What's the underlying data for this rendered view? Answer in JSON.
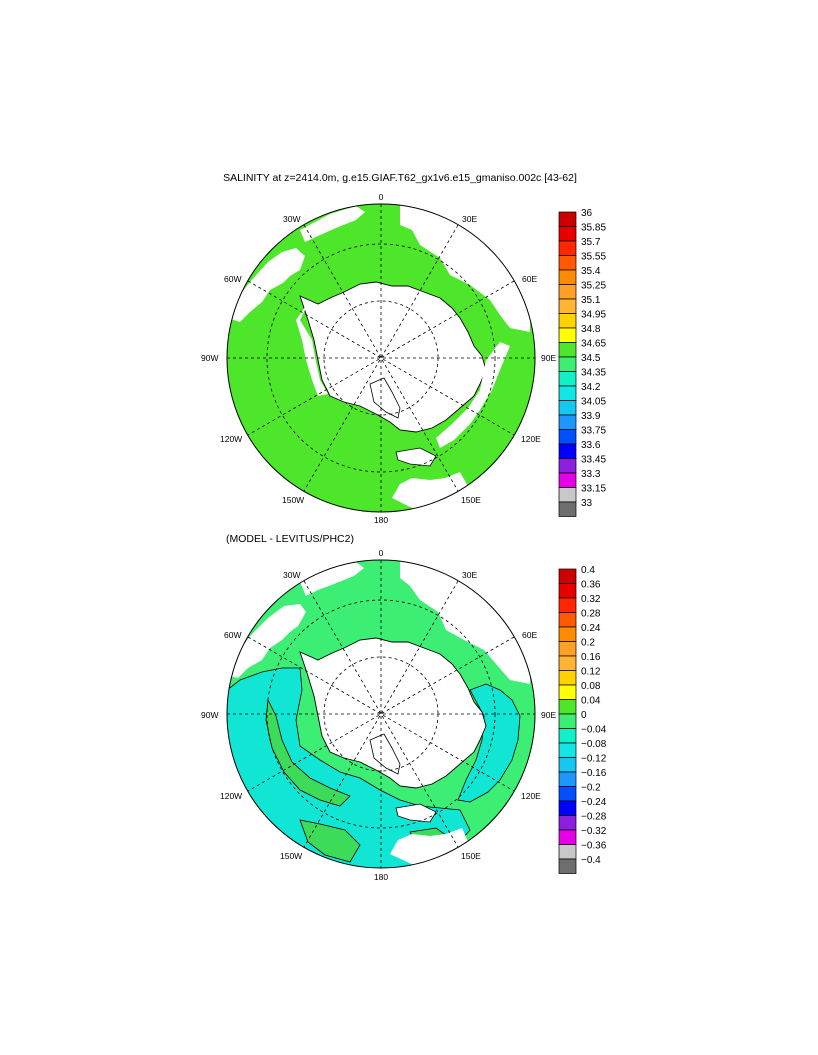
{
  "title": "SALINITY at z=2414.0m, g.e15.GIAF.T62_gx1v6.e15_gmaniso.002c [43-62]",
  "subtitle": "(MODEL - LEVITUS/PHC2)",
  "lon_labels": {
    "top": "0",
    "bottom": "180",
    "left": "90W",
    "right": "90E",
    "w30": "30W",
    "e30": "30E",
    "w60": "60W",
    "e60": "60E",
    "w120": "120W",
    "e120": "120E",
    "w150": "150W",
    "e150": "150E"
  },
  "colors": {
    "land": "#ffffff",
    "salinity_field": "#4ee62a",
    "diff_positive": "#3cee73",
    "diff_negative": "#11e6d4",
    "diff_light": "#7ee9de",
    "diff_green": "#3cdc5a"
  },
  "colorbar_top": {
    "labels": [
      "36",
      "35.85",
      "35.7",
      "35.55",
      "35.4",
      "35.25",
      "35.1",
      "34.95",
      "34.8",
      "34.65",
      "34.5",
      "34.35",
      "34.2",
      "34.05",
      "33.9",
      "33.75",
      "33.6",
      "33.45",
      "33.3",
      "33.15",
      "33"
    ],
    "colors": [
      "#cc0000",
      "#e60000",
      "#ff2600",
      "#ff5a00",
      "#ff8c00",
      "#ffa028",
      "#ffb432",
      "#ffd200",
      "#ffff00",
      "#4ee62a",
      "#3cee73",
      "#12f0c8",
      "#12e6e6",
      "#16c8f0",
      "#1e96ff",
      "#0050ff",
      "#0000ff",
      "#8c1ede",
      "#e600e6",
      "#c8c8c8",
      "#6e6e6e"
    ]
  },
  "colorbar_bottom": {
    "labels": [
      "0.4",
      "0.36",
      "0.32",
      "0.28",
      "0.24",
      "0.2",
      "0.16",
      "0.12",
      "0.08",
      "0.04",
      "0",
      "−0.04",
      "−0.08",
      "−0.12",
      "−0.16",
      "−0.2",
      "−0.24",
      "−0.28",
      "−0.32",
      "−0.36",
      "−0.4"
    ],
    "colors": [
      "#cc0000",
      "#e60000",
      "#ff2600",
      "#ff5a00",
      "#ff8c00",
      "#ffa028",
      "#ffb432",
      "#ffd200",
      "#ffff00",
      "#4ee62a",
      "#3cee73",
      "#12f0c8",
      "#12e6e6",
      "#16c8f0",
      "#1e96ff",
      "#0050ff",
      "#0000ff",
      "#8c1ede",
      "#e600e6",
      "#c8c8c8",
      "#6e6e6e"
    ]
  }
}
